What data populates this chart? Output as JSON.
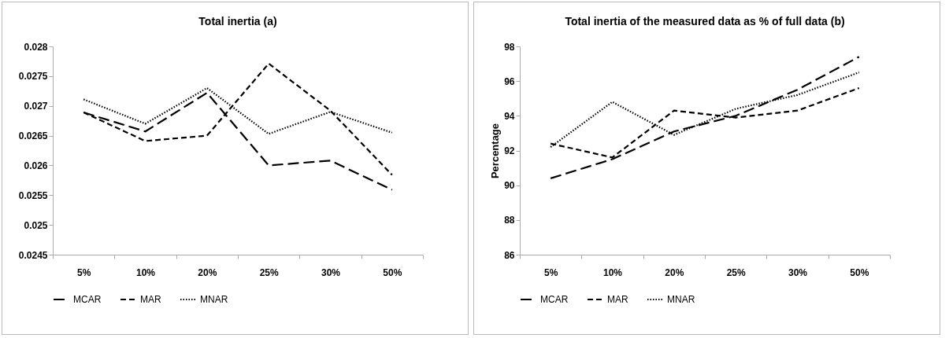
{
  "chart_data": [
    {
      "type": "line",
      "title": "Total inertia (a)",
      "categories": [
        "5%",
        "10%",
        "20%",
        "25%",
        "30%",
        "50%"
      ],
      "ylim": [
        0.0245,
        0.028
      ],
      "yticks": [
        0.0245,
        0.025,
        0.0255,
        0.026,
        0.0265,
        0.027,
        0.0275,
        0.028
      ],
      "grid": false,
      "legend": "bottom",
      "series": [
        {
          "name": "MCAR",
          "color": "#000000",
          "line_style": "dashed",
          "values": [
            0.02689,
            0.02657,
            0.02722,
            0.026,
            0.02608,
            0.02559
          ]
        },
        {
          "name": "MAR",
          "color": "#000000",
          "line_style": "dashed",
          "values": [
            0.02689,
            0.02641,
            0.0265,
            0.02771,
            0.02692,
            0.02584
          ]
        },
        {
          "name": "MNAR",
          "color": "#000000",
          "line_style": "dotted",
          "values": [
            0.02711,
            0.0267,
            0.0273,
            0.02653,
            0.0269,
            0.02655
          ]
        }
      ]
    },
    {
      "type": "line",
      "title": "Total inertia of the measured data as % of full data (b)",
      "ylabel": "Percentage",
      "categories": [
        "5%",
        "10%",
        "20%",
        "25%",
        "30%",
        "50%"
      ],
      "ylim": [
        86,
        98
      ],
      "yticks": [
        86,
        88,
        90,
        92,
        94,
        96,
        98
      ],
      "grid": false,
      "legend": "bottom",
      "series": [
        {
          "name": "MCAR",
          "color": "#000000",
          "line_style": "dashed",
          "values": [
            90.4,
            91.5,
            93.1,
            94.0,
            95.5,
            97.4
          ]
        },
        {
          "name": "MAR",
          "color": "#000000",
          "line_style": "dashed",
          "values": [
            92.4,
            91.6,
            94.3,
            93.9,
            94.3,
            95.6
          ]
        },
        {
          "name": "MNAR",
          "color": "#000000",
          "line_style": "dotted",
          "values": [
            92.2,
            94.8,
            92.9,
            94.4,
            95.2,
            96.5
          ]
        }
      ]
    }
  ]
}
